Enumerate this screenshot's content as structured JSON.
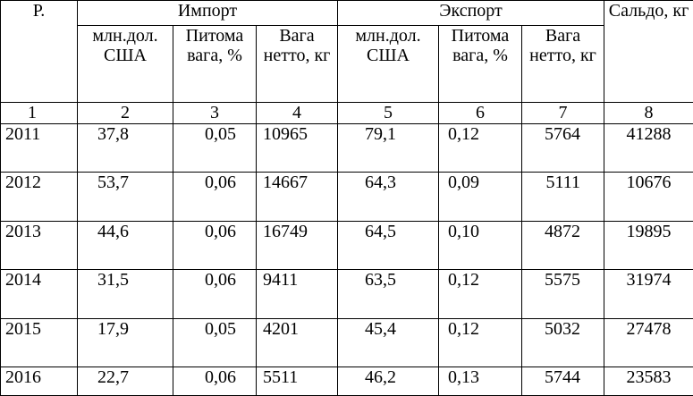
{
  "header": {
    "year_col": "Р.",
    "import_group": "Импорт",
    "export_group": "Экспорт",
    "import_cols": [
      "млн.дол. США",
      "Питома вага, %",
      "Вага нетто, кг"
    ],
    "export_cols": [
      "млн.дол. США",
      "Питома вага, %",
      "Вага нетто, кг"
    ],
    "saldo_col": "Сальдо, кг"
  },
  "col_numbers": [
    "1",
    "2",
    "3",
    "4",
    "5",
    "6",
    "7",
    "8"
  ],
  "rows": [
    {
      "year": "2011",
      "imp_usd": "37,8",
      "imp_share": "0,05",
      "imp_net": "10965",
      "exp_usd": "79,1",
      "exp_share": "0,12",
      "exp_net": "5764",
      "saldo": "41288"
    },
    {
      "year": "2012",
      "imp_usd": "53,7",
      "imp_share": "0,06",
      "imp_net": "14667",
      "exp_usd": "64,3",
      "exp_share": "0,09",
      "exp_net": "5111",
      "saldo": "10676"
    },
    {
      "year": "2013",
      "imp_usd": "44,6",
      "imp_share": "0,06",
      "imp_net": "16749",
      "exp_usd": "64,5",
      "exp_share": "0,10",
      "exp_net": "4872",
      "saldo": "19895"
    },
    {
      "year": "2014",
      "imp_usd": "31,5",
      "imp_share": "0,06",
      "imp_net": "9411",
      "exp_usd": "63,5",
      "exp_share": "0,12",
      "exp_net": "5575",
      "saldo": "31974"
    },
    {
      "year": "2015",
      "imp_usd": "17,9",
      "imp_share": "0,05",
      "imp_net": "4201",
      "exp_usd": "45,4",
      "exp_share": "0,12",
      "exp_net": "5032",
      "saldo": "27478"
    },
    {
      "year": "2016",
      "imp_usd": "22,7",
      "imp_share": "0,06",
      "imp_net": "5511",
      "exp_usd": "46,2",
      "exp_share": "0,13",
      "exp_net": "5744",
      "saldo": "23583"
    }
  ]
}
